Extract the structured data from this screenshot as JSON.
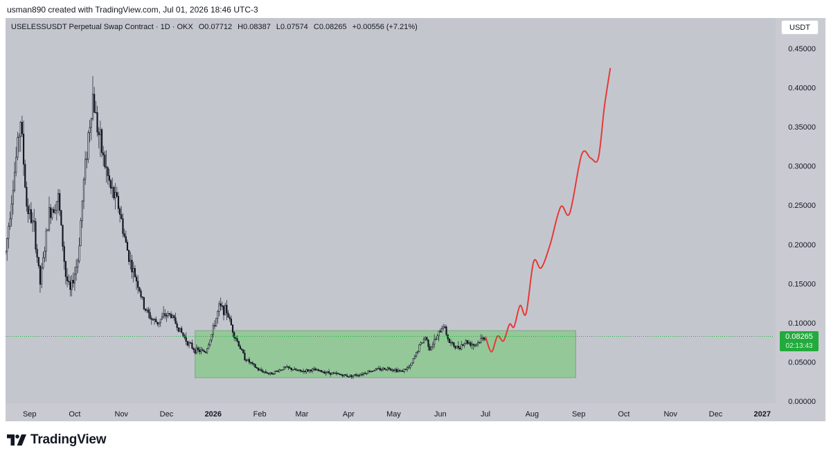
{
  "header": {
    "attribution": "usman890 created with TradingView.com, Jul 01, 2026 18:46 UTC-3"
  },
  "symbol": {
    "name": "USELESSUSDT Perpetual Swap Contract · 1D · OKX",
    "open": "O0.07712",
    "high": "H0.08387",
    "low": "L0.07574",
    "close": "C0.08265",
    "change": "+0.00556 (+7.21%)"
  },
  "currency_button": "USDT",
  "price_badge": {
    "price": "0.08265",
    "countdown": "02:13:43"
  },
  "footer": {
    "brand": "TradingView"
  },
  "colors": {
    "plot_background": "#c4c6ce",
    "range_box": "#8fc893",
    "projection": "#e53935",
    "candles": "#131722",
    "badge": "#22ab3c"
  },
  "chart_data": {
    "type": "candlestick",
    "y_axis": {
      "ticks": [
        "0.45000",
        "0.40000",
        "0.35000",
        "0.30000",
        "0.25000",
        "0.20000",
        "0.15000",
        "0.10000",
        "0.05000",
        "0.00000"
      ],
      "tick_values": [
        0.45,
        0.4,
        0.35,
        0.3,
        0.25,
        0.2,
        0.15,
        0.1,
        0.05,
        0.0
      ],
      "range": [
        0.0,
        0.465
      ]
    },
    "x_axis": {
      "labels": [
        "Sep",
        "Oct",
        "Nov",
        "Dec",
        "2026",
        "Feb",
        "Mar",
        "Apr",
        "May",
        "Jun",
        "Jul",
        "Aug",
        "Sep",
        "Oct",
        "Nov",
        "Dec",
        "2027"
      ],
      "bold": [
        "2026",
        "2027"
      ],
      "range_start": "2025-08-16",
      "range_end": "2027-01-08"
    },
    "current_price": 0.08265,
    "price_path": [
      [
        "2025-08-16",
        0.19
      ],
      [
        "2025-08-20",
        0.26
      ],
      [
        "2025-08-26",
        0.36
      ],
      [
        "2025-08-30",
        0.25
      ],
      [
        "2025-09-04",
        0.22
      ],
      [
        "2025-09-08",
        0.15
      ],
      [
        "2025-09-14",
        0.24
      ],
      [
        "2025-09-20",
        0.26
      ],
      [
        "2025-09-25",
        0.16
      ],
      [
        "2025-09-28",
        0.14
      ],
      [
        "2025-10-03",
        0.18
      ],
      [
        "2025-10-07",
        0.28
      ],
      [
        "2025-10-10",
        0.34
      ],
      [
        "2025-10-13",
        0.39
      ],
      [
        "2025-10-16",
        0.35
      ],
      [
        "2025-10-20",
        0.31
      ],
      [
        "2025-10-25",
        0.27
      ],
      [
        "2025-10-30",
        0.25
      ],
      [
        "2025-11-04",
        0.2
      ],
      [
        "2025-11-08",
        0.17
      ],
      [
        "2025-11-12",
        0.15
      ],
      [
        "2025-11-16",
        0.12
      ],
      [
        "2025-11-21",
        0.105
      ],
      [
        "2025-11-25",
        0.1
      ],
      [
        "2025-11-30",
        0.11
      ],
      [
        "2025-12-04",
        0.11
      ],
      [
        "2025-12-10",
        0.09
      ],
      [
        "2025-12-15",
        0.075
      ],
      [
        "2025-12-20",
        0.065
      ],
      [
        "2025-12-27",
        0.063
      ],
      [
        "2025-12-31",
        0.085
      ],
      [
        "2026-01-05",
        0.12
      ],
      [
        "2026-01-10",
        0.115
      ],
      [
        "2026-01-15",
        0.085
      ],
      [
        "2026-01-22",
        0.055
      ],
      [
        "2026-01-31",
        0.04
      ],
      [
        "2026-02-08",
        0.035
      ],
      [
        "2026-02-18",
        0.043
      ],
      [
        "2026-02-28",
        0.038
      ],
      [
        "2026-03-08",
        0.04
      ],
      [
        "2026-03-20",
        0.036
      ],
      [
        "2026-04-01",
        0.032
      ],
      [
        "2026-04-08",
        0.034
      ],
      [
        "2026-04-18",
        0.04
      ],
      [
        "2026-04-28",
        0.042
      ],
      [
        "2026-05-06",
        0.038
      ],
      [
        "2026-05-12",
        0.044
      ],
      [
        "2026-05-18",
        0.07
      ],
      [
        "2026-05-22",
        0.082
      ],
      [
        "2026-05-25",
        0.068
      ],
      [
        "2026-05-30",
        0.082
      ],
      [
        "2026-06-03",
        0.098
      ],
      [
        "2026-06-07",
        0.075
      ],
      [
        "2026-06-12",
        0.068
      ],
      [
        "2026-06-18",
        0.076
      ],
      [
        "2026-06-24",
        0.072
      ],
      [
        "2026-07-01",
        0.0826
      ]
    ],
    "projection_path": [
      [
        "2026-07-01",
        0.0826
      ],
      [
        "2026-07-05",
        0.063
      ],
      [
        "2026-07-09",
        0.083
      ],
      [
        "2026-07-13",
        0.077
      ],
      [
        "2026-07-17",
        0.098
      ],
      [
        "2026-07-20",
        0.095
      ],
      [
        "2026-07-24",
        0.122
      ],
      [
        "2026-07-28",
        0.112
      ],
      [
        "2026-08-02",
        0.178
      ],
      [
        "2026-08-07",
        0.17
      ],
      [
        "2026-08-13",
        0.2
      ],
      [
        "2026-08-20",
        0.248
      ],
      [
        "2026-08-26",
        0.24
      ],
      [
        "2026-09-03",
        0.315
      ],
      [
        "2026-09-09",
        0.31
      ],
      [
        "2026-09-14",
        0.31
      ],
      [
        "2026-09-18",
        0.375
      ],
      [
        "2026-09-22",
        0.425
      ]
    ],
    "range_box": {
      "x_start": "2025-12-20",
      "x_end": "2026-08-30",
      "y_low": 0.03,
      "y_high": 0.09
    },
    "grid": false
  }
}
